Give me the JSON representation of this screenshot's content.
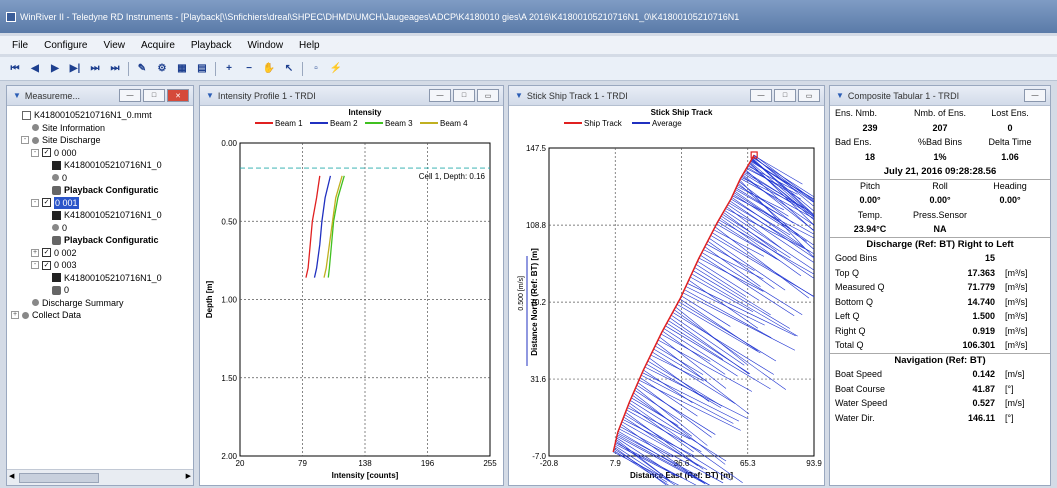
{
  "window": {
    "title": "WinRiver II - Teledyne RD Instruments - [Playback[\\\\Snfichiers\\dreal\\SHPEC\\DHMD\\UMCH\\Jaugeages\\ADCP\\K4180010 gies\\A 2016\\K41800105210716N1_0\\K41800105210716N1"
  },
  "menu": [
    "File",
    "Configure",
    "View",
    "Acquire",
    "Playback",
    "Window",
    "Help"
  ],
  "toolbar": {
    "icons": [
      "first-icon",
      "prev-icon",
      "play-icon",
      "next-icon",
      "fast-next-icon",
      "last-icon",
      "sep",
      "measure-icon",
      "config-icon",
      "grid-icon",
      "table-icon",
      "sep",
      "zoom-in-icon",
      "zoom-out-icon",
      "pan-icon",
      "pointer-icon",
      "sep",
      "disabled-icon",
      "lightning-icon"
    ]
  },
  "measurements": {
    "title": "Measureme...",
    "tree": [
      {
        "depth": 0,
        "icon": "doc",
        "label": "K41800105210716N1_0.mmt",
        "pm": ""
      },
      {
        "depth": 1,
        "icon": "fold",
        "label": "Site Information",
        "pm": ""
      },
      {
        "depth": 1,
        "icon": "fold",
        "label": "Site Discharge",
        "pm": "-"
      },
      {
        "depth": 2,
        "icon": "box",
        "label": "0 000",
        "pm": "-"
      },
      {
        "depth": 3,
        "icon": "disk",
        "label": "K41800105210716N1_0",
        "pm": ""
      },
      {
        "depth": 3,
        "icon": "fold",
        "label": "0",
        "pm": ""
      },
      {
        "depth": 3,
        "icon": "gear",
        "label": "Playback Configuratic",
        "pm": "",
        "bold": true
      },
      {
        "depth": 2,
        "icon": "box",
        "label": "0 001",
        "pm": "-",
        "selected": true
      },
      {
        "depth": 3,
        "icon": "disk",
        "label": "K41800105210716N1_0",
        "pm": ""
      },
      {
        "depth": 3,
        "icon": "fold",
        "label": "0",
        "pm": ""
      },
      {
        "depth": 3,
        "icon": "gear",
        "label": "Playback Configuratic",
        "pm": "",
        "bold": true
      },
      {
        "depth": 2,
        "icon": "box",
        "label": "0 002",
        "pm": "+"
      },
      {
        "depth": 2,
        "icon": "box",
        "label": "0 003",
        "pm": "-"
      },
      {
        "depth": 3,
        "icon": "disk",
        "label": "K41800105210716N1_0",
        "pm": ""
      },
      {
        "depth": 3,
        "icon": "gear",
        "label": "0",
        "pm": ""
      },
      {
        "depth": 1,
        "icon": "fold",
        "label": "Discharge Summary",
        "pm": ""
      },
      {
        "depth": 0,
        "icon": "fold",
        "label": "Collect Data",
        "pm": "+"
      }
    ]
  },
  "intensity_panel": {
    "title": "Intensity Profile 1 - TRDI"
  },
  "ship_panel": {
    "title": "Stick Ship Track 1 - TRDI"
  },
  "tabular_panel": {
    "title": "Composite Tabular 1 - TRDI"
  },
  "chart_data": [
    {
      "type": "line",
      "title": "Intensity",
      "xlabel": "Intensity [counts]",
      "ylabel": "Depth [m]",
      "xlim": [
        20,
        255
      ],
      "ylim": [
        2.0,
        0.0
      ],
      "x_ticks": [
        "20",
        "79",
        "138",
        "196",
        "255"
      ],
      "y_ticks": [
        "0.00",
        "0.50",
        "1.00",
        "1.50",
        "2.00"
      ],
      "annotation": "Cell 1, Depth: 0.16",
      "annotation_depth": 0.16,
      "series": [
        {
          "name": "Beam 1",
          "color": "#e02020",
          "points": [
            [
              95,
              0.21
            ],
            [
              92,
              0.35
            ],
            [
              88,
              0.5
            ],
            [
              86,
              0.65
            ],
            [
              84,
              0.8
            ],
            [
              82,
              0.86
            ]
          ]
        },
        {
          "name": "Beam 2",
          "color": "#2030c0",
          "points": [
            [
              105,
              0.21
            ],
            [
              100,
              0.35
            ],
            [
              97,
              0.5
            ],
            [
              95,
              0.65
            ],
            [
              92,
              0.8
            ],
            [
              90,
              0.86
            ]
          ]
        },
        {
          "name": "Beam 3",
          "color": "#40c020",
          "points": [
            [
              118,
              0.21
            ],
            [
              112,
              0.35
            ],
            [
              108,
              0.5
            ],
            [
              106,
              0.65
            ],
            [
              104,
              0.8
            ],
            [
              103,
              0.86
            ]
          ]
        },
        {
          "name": "Beam 4",
          "color": "#c0b020",
          "points": [
            [
              116,
              0.21
            ],
            [
              110,
              0.35
            ],
            [
              107,
              0.5
            ],
            [
              104,
              0.65
            ],
            [
              101,
              0.8
            ],
            [
              99,
              0.86
            ]
          ]
        }
      ]
    },
    {
      "type": "line",
      "title": "Stick Ship Track",
      "xlabel": "Distance East (Ref: BT) [m]",
      "ylabel": "Distance North (Ref: BT) [m]",
      "scale_label": "0.500 [m/s]",
      "xlim": [
        -20.8,
        93.9
      ],
      "ylim": [
        -7.0,
        147.5
      ],
      "x_ticks": [
        "-20.8",
        "7.9",
        "36.6",
        "65.3",
        "93.9"
      ],
      "y_ticks": [
        "-7.0",
        "31.6",
        "70.2",
        "108.8",
        "147.5"
      ],
      "series": [
        {
          "name": "Ship Track",
          "color": "#e02020",
          "points": [
            [
              7.0,
              -5
            ],
            [
              9,
              5
            ],
            [
              14,
              20
            ],
            [
              20,
              36
            ],
            [
              28,
              55
            ],
            [
              36,
              72
            ],
            [
              44,
              92
            ],
            [
              52,
              110
            ],
            [
              58,
              122
            ],
            [
              62,
              132
            ],
            [
              66,
              140
            ],
            [
              68,
              144
            ]
          ]
        },
        {
          "name": "Average",
          "color": "#2030c0",
          "points": []
        }
      ]
    }
  ],
  "tabular": {
    "header": [
      "Ens. Nmb.",
      "Nmb. of Ens.",
      "Lost Ens."
    ],
    "header_vals": [
      "239",
      "207",
      "0"
    ],
    "header2": [
      "Bad Ens.",
      "%Bad Bins",
      "Delta Time"
    ],
    "header2_vals": [
      "18",
      "1%",
      "1.06"
    ],
    "datetime": "July 21, 2016  09:28:28.56",
    "att_hdr": [
      "Pitch",
      "Roll",
      "Heading"
    ],
    "att_vals": [
      "0.00°",
      "0.00°",
      "0.00°"
    ],
    "temp_hdr": [
      "Temp.",
      "Press.Sensor"
    ],
    "temp_vals": [
      "23.94°C",
      "NA"
    ],
    "discharge_title": "Discharge (Ref: BT) Right to Left",
    "good_bins_label": "Good Bins",
    "good_bins_val": "15",
    "rows": [
      {
        "label": "Top Q",
        "val": "17.363",
        "unit": "[m³/s]"
      },
      {
        "label": "Measured Q",
        "val": "71.779",
        "unit": "[m³/s]"
      },
      {
        "label": "Bottom Q",
        "val": "14.740",
        "unit": "[m³/s]"
      },
      {
        "label": "Left Q",
        "val": "1.500",
        "unit": "[m³/s]"
      },
      {
        "label": "Right Q",
        "val": "0.919",
        "unit": "[m³/s]"
      },
      {
        "label": "Total Q",
        "val": "106.301",
        "unit": "[m³/s]"
      }
    ],
    "nav_title": "Navigation (Ref: BT)",
    "nav": [
      {
        "label": "Boat Speed",
        "val": "0.142",
        "unit": "[m/s]"
      },
      {
        "label": "Boat Course",
        "val": "41.87",
        "unit": "[°]"
      },
      {
        "label": "Water Speed",
        "val": "0.527",
        "unit": "[m/s]"
      },
      {
        "label": "Water Dir.",
        "val": "146.11",
        "unit": "[°]"
      }
    ]
  }
}
